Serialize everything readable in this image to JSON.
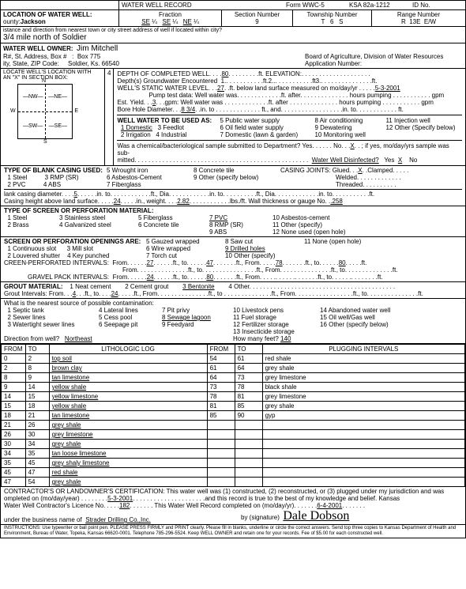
{
  "header": {
    "title": "WATER WELL RECORD",
    "form_no": "Form WWC-5",
    "ksa": "KSA 82a-1212",
    "id_label": "ID No."
  },
  "location": {
    "section_label": "LOCATION OF WATER WELL:",
    "county_label": "ounty:",
    "county": "Jackson",
    "fraction_label": "Fraction",
    "se1": "SE",
    "q1": "¼",
    "se2": "SE",
    "q2": "¼",
    "ne": "NE",
    "q3": "¼",
    "section_num_label": "Section Number",
    "section_num": "9",
    "township_label": "Township Number",
    "t": "T",
    "t_val": "6",
    "s": "S",
    "range_label": "Range Number",
    "r": "R",
    "r_val": "13E",
    "ew": "E/W",
    "distance_label": "istance and direction from nearest town or city street address of well if located within city?",
    "distance": "3/4 mile north of Soldier"
  },
  "owner": {
    "label": "WATER WELL OWNER:",
    "name": "Jim Mitchell",
    "addr_label": "R#, St. Address, Box #",
    "addr": "Box 775",
    "city_label": "ity, State, ZIP Code:",
    "city": "Soldier, Ks. 66540",
    "board": "Board of Agriculture, Division of Water Resources",
    "app_label": "Application Number:"
  },
  "locate": {
    "label": "LOCATE WELL'S LOCATION WITH",
    "x_label": "AN \"X\" IN SECTION BOX:",
    "box_num": "4"
  },
  "depth": {
    "label": "DEPTH OF COMPLETED WELL. . . .",
    "val": "80",
    "ft": ".ft.",
    "elev_label": "ELEVATION:",
    "gw_label": "Depth(s) Groundwater Encountered",
    "gw1": "1.",
    "gw2": "2.",
    "gw3": "3.",
    "static_label": "WELL'S STATIC WATER LEVEL. . .",
    "static": "27",
    "static_ft": ". .ft. below land surface measured on mo/day/yr . . . . .",
    "static_date": "5-3-2001",
    "pump_label": "Pump test data:  Well water was. . . . . . . . . . . . .ft. after. . . . . . . . . . . . . . hours pumping . . . . . . . . . . . gpm",
    "yield_label": "Est. Yield. . .",
    "yield": "3",
    "yield_after": ". . .gpm:  Well water was . . . . . . . . . . . . .ft. after . . . . . . . . . . . . . . hours pumping . . . . . . . . . . . gpm",
    "bore_label": "Bore Hole Diameter. . .",
    "bore": "8 3/4",
    "bore_after": ". .in. to . . . . . . . . . . . . . ft., and. . . . . . . . . . . . . . . . . .in. to. . . . . . . . . . . . ft."
  },
  "use": {
    "label": "WELL WATER TO BE USED AS:",
    "i1": "1 Domestic",
    "i1u": true,
    "i2": "2 Irrigation",
    "i3": "3 Feedlot",
    "i4": "4 Industrial",
    "i5": "5 Public water supply",
    "i6": "6 Oil field water supply",
    "i7": "7 Domestic (lawn & garden)",
    "i8": "8 Air conditioning",
    "i9": "9 Dewatering",
    "i10": "10 Monitoring well",
    "i11": "11 Injection well",
    "i12": "12 Other (Specify below)"
  },
  "chem": {
    "label": "Was a chemical/bacteriological sample submitted to Department? Yes. . . . . . No. . .",
    "val": "X",
    "after": ". . ; if yes, mo/day/yrs sample was sub-",
    "mitted": "mitted. . . . . . . . . . . . . . . . . . . . . . . . . . . . . . . . . . . . . . . . . . . . . . . . . .",
    "disinfect": "Water Well Disinfected?",
    "yes": "Yes",
    "x": "X",
    "no": "No"
  },
  "casing": {
    "label": "TYPE OF BLANK CASING USED:",
    "i1": "1 Steel",
    "i1v": "3 RMP (SR)",
    "i2": "2 PVC",
    "i2v": "4 ABS",
    "i5": "5 Wrought iron",
    "i6": "6 Asbestos-Cement",
    "i7": "7 Fiberglass",
    "i8": "8 Concrete tile",
    "i9": "9 Other (specify below)",
    "joints_label": "CASING JOINTS:",
    "glued": "Glued. . .",
    "glued_v": "X",
    "clamped": ". .Clamped. . . . .",
    "welded": "Welded. . . . . . . . . . . . .",
    "threaded": "Threaded. . . . . . . . . .",
    "diam_label": "lank casing diameter. . . .",
    "diam": "5",
    "diam_after": ". . . . . .in. to. . . . . . . . . . . .ft., Dia. . . . . . . . . . . .in. to. . . . . . . . . .ft., Dia. . . . . . . . . . . . .in. to. . . . . . . . . . .ft.",
    "height_label": "Casing height above land surface. . . . .",
    "height": "24",
    "height_after": ". . . . .in., weight. . . .",
    "weight": "2.82",
    "weight_after": ". . . . . . . . . . . .lbs./ft. Wall thickness or gauge No. .",
    "gauge": ".258"
  },
  "screen": {
    "label": "TYPE OF SCREEN OR PERFORATION MATERIAL:",
    "i1": "1 Steel",
    "i2": "2 Brass",
    "i3": "3 Stainless steel",
    "i4": "4 Galvanized steel",
    "i5": "5 Fiberglass",
    "i6": "6 Concrete tile",
    "i7": "7 PVC",
    "i7u": true,
    "i8": "8 RMP (SR)",
    "i9": "9 ABS",
    "i10": "10 Asbestos-cement",
    "i11": "11 Other (specify)",
    "i12": "12 None used (open hole)"
  },
  "openings": {
    "label": "SCREEN OR PERFORATION OPENINGS ARE:",
    "i1": "1 Continuous slot",
    "i2": "2 Louvered shutter",
    "i3": "3 Mill slot",
    "i4": "4 Key punched",
    "i5": "5 Gauzed wrapped",
    "i6": "6 Wire wrapped",
    "i7": "7 Torch cut",
    "i8": "8 Saw cut",
    "i9": "9 Drilled holes",
    "i9u": true,
    "i10": "10 Other (specify)",
    "i11": "11 None (open hole)"
  },
  "intervals": {
    "sp_label": "CREEN-PERFORATED INTERVALS:",
    "from": "From. . . . . .",
    "v1": "27",
    "to": ". . . . . .ft., to. . . . . .",
    "v2": "47",
    "from2": ". . . . . . .ft., From. . . . .",
    "v3": "78",
    "to2": ". . . . . . .ft., to. . . . . .",
    "v4": "80",
    "end": ". . . . .ft.",
    "line2": "From. . . . . . . . . . . . . . .ft., to. . . . . . . . . . . . . . . .ft., From. . . . . . . . . . . . . . .ft., to. . . . . . . . . . . . . .ft.",
    "gp_label": "GRAVEL PACK INTERVALS:",
    "gv1": "24",
    "gv2": "80"
  },
  "grout": {
    "label": "GROUT MATERIAL:",
    "i1": "1 Neat cement",
    "i2": "2 Cement grout",
    "i3": "3 Bentonite",
    "i3u": true,
    "i4": "4 Other. . . . . . . . . . . . . . . . . . . . . . . . . . . . . . . . . . . . . . . . . .",
    "int_label": "Grout Intervals:  From. . .",
    "gv1": "4",
    "to": ". . .ft., to. . . .",
    "gv2": "24",
    "after": ". . . . .ft., From. . . . . . . . . . . . . . .ft., to . . . . . . . . . . . . . .ft., From. . . . . . . . . . . . . . . . .ft., to. . . . . . . . . . . . . . .ft."
  },
  "contam": {
    "label": "What is the nearest source of possible contamination:",
    "i1": "1 Septic tank",
    "i2": "2 Sewer lines",
    "i3": "3 Watertight sewer lines",
    "i4": "4 Lateral lines",
    "i5": "5 Cess pool",
    "i6": "6 Seepage pit",
    "i7": "7 Pit privy",
    "i8": "8 Sewage lagoon",
    "i8u": true,
    "i9": "9 Feedyard",
    "i10": "10 Livestock pens",
    "i11": "11 Fuel storage",
    "i12": "12 Fertilizer storage",
    "i13": "13 Insecticide storage",
    "i14": "14 Abandoned water well",
    "i15": "15 Oil well/Gas well",
    "i16": "16 Other (specify below)",
    "dir_label": "Direction from well?",
    "dir": "Northeast",
    "feet_label": "How many feet?",
    "feet": "140"
  },
  "log": {
    "h1": "FROM",
    "h2": "TO",
    "h3": "LITHOLOGIC LOG",
    "h4": "FROM",
    "h5": "TO",
    "h6": "PLUGGING INTERVALS",
    "rows": [
      [
        "0",
        "2",
        "top soil",
        "54",
        "61",
        "red shale"
      ],
      [
        "2",
        "8",
        "brown clay",
        "61",
        "64",
        "grey shale"
      ],
      [
        "8",
        "9",
        "tan limestone",
        "64",
        "73",
        "grey limestone"
      ],
      [
        "9",
        "14",
        "yellow shale",
        "73",
        "78",
        "black shale"
      ],
      [
        "14",
        "15",
        "yellow limestone",
        "78",
        "81",
        "grey limestone"
      ],
      [
        "15",
        "18",
        "yellow shale",
        "81",
        "85",
        "grey shale"
      ],
      [
        "18",
        "21",
        "tan limestone",
        "85",
        "90",
        "gyp"
      ],
      [
        "21",
        "26",
        "grey shale",
        "",
        "",
        ""
      ],
      [
        "26",
        "30",
        "grey limestone",
        "",
        "",
        ""
      ],
      [
        "30",
        "34",
        "grey shale",
        "",
        "",
        ""
      ],
      [
        "34",
        "35",
        "tan loose limestone",
        "",
        "",
        ""
      ],
      [
        "35",
        "45",
        "grey shaly limestone",
        "",
        "",
        ""
      ],
      [
        "45",
        "47",
        "red shale",
        "",
        "",
        ""
      ],
      [
        "47",
        "54",
        "grey shale",
        "",
        "",
        ""
      ]
    ]
  },
  "cert": {
    "label": "CONTRACTOR'S OR LANDOWNER'S CERTIFICATION: This water well was (1) constructed, (2) reconstructed, or (3) plugged under my jurisdiction and was",
    "comp_label": "ompleted on (mo/day/year) . . . . . . . .",
    "comp": "5-3-2001",
    "comp_after": ". . . . . . . . . . . . . . . . . . . . .and this record is true to the best of my knowledge and belief. Kansas",
    "lic_label": "Water Well Contractor's Licence No. . . . .",
    "lic": "182",
    "lic_after": ". . . . . . . This Water Well Record completed on (mo/day/yr). . . . . . .",
    "rec_date": "6-4-2001",
    "under_label": "under the business name of",
    "business": "Strader Drilling Co.,Inc.",
    "sig_label": "by (signature)",
    "signature": "Dale Dobson"
  },
  "footer": {
    "text": "INSTRUCTIONS: Use typewriter or ball point pen. PLEASE PRESS FIRMLY and PRINT clearly. Please fill in blanks, underline or circle the correct answers. Send top three copies to Kansas Department of Health and Environment, Bureau of Water, Topeka, Kansas 66620-0001. Telephone 785-296-5524. Keep WELL OWNER and retain one for your records. Fee of $5.00 for each constructed well."
  }
}
